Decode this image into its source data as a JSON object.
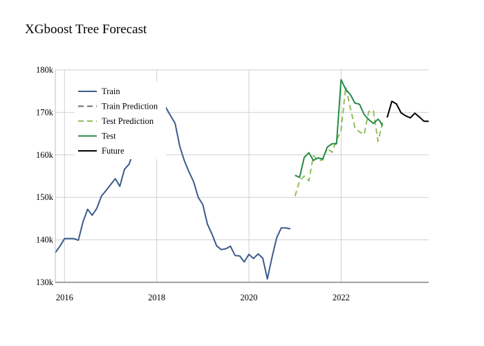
{
  "chart_data": {
    "type": "line",
    "title": "XGboost Tree Forecast",
    "xlabel": "",
    "ylabel": "",
    "xlim": [
      2015.8,
      2023.9
    ],
    "ylim": [
      130000,
      180000
    ],
    "x_ticks": [
      2016,
      2018,
      2020,
      2022
    ],
    "x_tick_labels": [
      "2016",
      "2018",
      "2020",
      "2022"
    ],
    "y_ticks": [
      130000,
      140000,
      150000,
      160000,
      170000,
      180000
    ],
    "y_tick_labels": [
      "130k",
      "140k",
      "150k",
      "160k",
      "170k",
      "180k"
    ],
    "grid": true,
    "legend_position": "top-left",
    "series": [
      {
        "name": "Train",
        "color": "#3b5b8a",
        "dash": "solid",
        "x": [
          2015.8,
          2015.9,
          2016.0,
          2016.1,
          2016.2,
          2016.3,
          2016.4,
          2016.5,
          2016.6,
          2016.7,
          2016.8,
          2016.9,
          2017.0,
          2017.1,
          2017.2,
          2017.3,
          2017.4,
          2017.5,
          2017.6,
          2017.7,
          2017.8,
          2017.9,
          2018.0,
          2018.1,
          2018.2,
          2018.3,
          2018.4,
          2018.5,
          2018.6,
          2018.7,
          2018.8,
          2018.9,
          2019.0,
          2019.1,
          2019.2,
          2019.3,
          2019.4,
          2019.5,
          2019.6,
          2019.7,
          2019.8,
          2019.9,
          2020.0,
          2020.1,
          2020.2,
          2020.3,
          2020.4,
          2020.5,
          2020.6,
          2020.7,
          2020.8,
          2020.9
        ],
        "values": [
          137000,
          138500,
          140300,
          140300,
          140300,
          139900,
          144200,
          147200,
          145800,
          147400,
          150300,
          151600,
          153000,
          154400,
          152600,
          156600,
          157800,
          160800,
          162800,
          165600,
          167200,
          168400,
          169200,
          170300,
          171100,
          169200,
          167400,
          162000,
          158600,
          156000,
          153700,
          150000,
          148300,
          143700,
          141300,
          138600,
          137700,
          137900,
          138500,
          136300,
          136200,
          134800,
          136600,
          135600,
          136700,
          135700,
          130800,
          135800,
          140400,
          142800,
          142800,
          142600
        ]
      },
      {
        "name": "Train Prediction",
        "color": "#6d6d6d",
        "dash": "dashed",
        "x": [],
        "values": []
      },
      {
        "name": "Test Prediction",
        "color": "#93bc5e",
        "dash": "dashed",
        "x": [
          2021.0,
          2021.1,
          2021.2,
          2021.3,
          2021.4,
          2021.5,
          2021.6,
          2021.7,
          2021.8,
          2021.9,
          2022.0,
          2022.1,
          2022.2,
          2022.3,
          2022.4,
          2022.5,
          2022.6,
          2022.7,
          2022.8,
          2022.9
        ],
        "values": [
          150300,
          153900,
          155000,
          153900,
          159800,
          158700,
          158800,
          161600,
          160600,
          163400,
          165800,
          176000,
          171000,
          166400,
          165400,
          164800,
          170200,
          170400,
          163200,
          167600
        ]
      },
      {
        "name": "Test",
        "color": "#238b45",
        "dash": "solid",
        "x": [
          2021.0,
          2021.1,
          2021.2,
          2021.3,
          2021.4,
          2021.5,
          2021.6,
          2021.7,
          2021.8,
          2021.9,
          2022.0,
          2022.1,
          2022.2,
          2022.3,
          2022.4,
          2022.5,
          2022.6,
          2022.7,
          2022.8,
          2022.85,
          2022.9
        ],
        "values": [
          155200,
          154700,
          159400,
          160500,
          158700,
          159300,
          159000,
          161800,
          162600,
          162600,
          177700,
          175400,
          174200,
          172200,
          171900,
          169500,
          168300,
          167400,
          168400,
          167800,
          166800
        ]
      },
      {
        "name": "Future",
        "color": "#000000",
        "dash": "solid",
        "x": [
          2023.0,
          2023.1,
          2023.2,
          2023.3,
          2023.4,
          2023.5,
          2023.6,
          2023.7,
          2023.8,
          2023.9
        ],
        "values": [
          168800,
          172600,
          172000,
          169900,
          169200,
          168700,
          169800,
          168900,
          167900,
          167900
        ]
      }
    ]
  }
}
